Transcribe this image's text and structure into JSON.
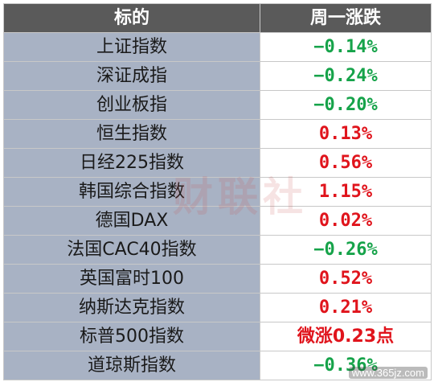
{
  "header": {
    "name": "标的",
    "change": "周一涨跌"
  },
  "colors": {
    "up": "#e0141c",
    "down": "#16a34a",
    "header_bg": "#5a5a5a",
    "name_bg": "#a8b2c4"
  },
  "rows": [
    {
      "name": "上证指数",
      "change": "−0.14%",
      "dir": "down"
    },
    {
      "name": "深证成指",
      "change": "−0.24%",
      "dir": "down"
    },
    {
      "name": "创业板指",
      "change": "−0.20%",
      "dir": "down"
    },
    {
      "name": "恒生指数",
      "change": "0.13%",
      "dir": "up"
    },
    {
      "name": "日经225指数",
      "change": "0.56%",
      "dir": "up"
    },
    {
      "name": "韩国综合指数",
      "change": "1.15%",
      "dir": "up"
    },
    {
      "name": "德国DAX",
      "change": "0.02%",
      "dir": "up"
    },
    {
      "name": "法国CAC40指数",
      "change": "−0.26%",
      "dir": "down"
    },
    {
      "name": "英国富时100",
      "change": "0.52%",
      "dir": "up"
    },
    {
      "name": "纳斯达克指数",
      "change": "0.21%",
      "dir": "up"
    },
    {
      "name": "标普500指数",
      "change": "微涨0.23点",
      "dir": "up",
      "text": true
    },
    {
      "name": "道琼斯指数",
      "change": "−0.36%",
      "dir": "down"
    }
  ],
  "watermark": "财联社",
  "site": "www.365jz.com"
}
